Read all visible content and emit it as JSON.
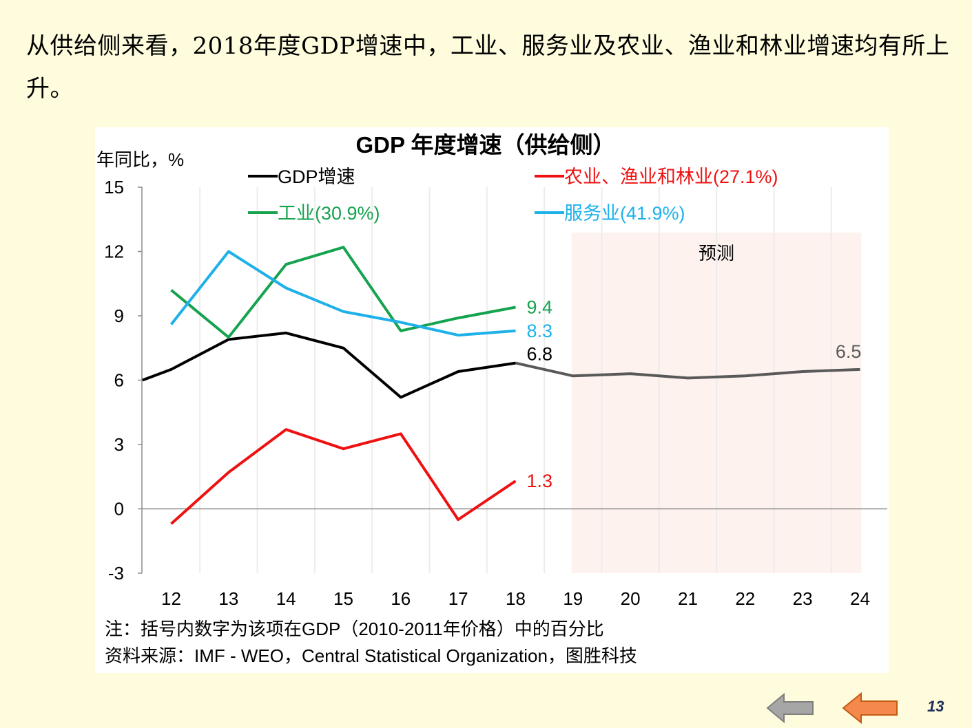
{
  "page": {
    "heading": "从供给侧来看，2018年度GDP增速中，工业、服务业及农业、渔业和林业增速均有所上升。",
    "page_number": "13"
  },
  "nav": {
    "back_icon": "arrow-left-gray",
    "prev_icon": "arrow-left-orange"
  },
  "colors": {
    "background": "#FEFCDC",
    "gdp": "#000000",
    "gdp_forecast": "#595959",
    "agri": "#EE1111",
    "industry": "#16A34F",
    "services": "#1EB1E9",
    "forecast_shade": "#FDF2EE",
    "nav_gray": "#A6A6A6",
    "nav_orange": "#F4894E"
  },
  "chart_data": {
    "type": "line",
    "title": "GDP 年度增速（供给侧）",
    "ylabel": "年同比，%",
    "xlabel": "",
    "categories": [
      "12",
      "13",
      "14",
      "15",
      "16",
      "17",
      "18",
      "19",
      "20",
      "21",
      "22",
      "23",
      "24"
    ],
    "yticks": [
      "15",
      "12",
      "9",
      "6",
      "3",
      "0",
      "-3"
    ],
    "ylim": [
      -3,
      15
    ],
    "grid": "vertical",
    "legend_position": "top",
    "forecast_label": "预测",
    "forecast_range": [
      "19",
      "24"
    ],
    "series": [
      {
        "name": "GDP增速",
        "color": "#000000",
        "x": [
          11.5,
          12,
          13,
          14,
          15,
          16,
          17,
          18
        ],
        "values": [
          6.0,
          6.5,
          7.9,
          8.2,
          7.5,
          5.2,
          6.4,
          6.8
        ],
        "end_label": "6.8"
      },
      {
        "name": "",
        "color": "#595959",
        "x": [
          18,
          19,
          20,
          21,
          22,
          23,
          24
        ],
        "values": [
          6.8,
          6.2,
          6.3,
          6.1,
          6.2,
          6.4,
          6.5
        ],
        "end_label": "6.5"
      },
      {
        "name": "农业、渔业和林业(27.1%)",
        "color": "#EE1111",
        "x": [
          12,
          13,
          14,
          15,
          16,
          17,
          18
        ],
        "values": [
          -0.7,
          1.7,
          3.7,
          2.8,
          3.5,
          -0.5,
          1.3
        ],
        "end_label": "1.3"
      },
      {
        "name": "工业(30.9%)",
        "color": "#16A34F",
        "x": [
          12,
          13,
          14,
          15,
          16,
          17,
          18
        ],
        "values": [
          10.2,
          8.0,
          11.4,
          12.2,
          8.3,
          8.9,
          9.4
        ],
        "end_label": "9.4"
      },
      {
        "name": "服务业(41.9%)",
        "color": "#1EB1E9",
        "x": [
          12,
          13,
          14,
          15,
          16,
          17,
          18
        ],
        "values": [
          8.6,
          12.0,
          10.3,
          9.2,
          8.7,
          8.1,
          8.3
        ],
        "end_label": "8.3"
      }
    ],
    "legend": [
      {
        "label": "GDP增速",
        "color": "#000000"
      },
      {
        "label": "农业、渔业和林业(27.1%)",
        "color": "#EE1111"
      },
      {
        "label": "工业(30.9%)",
        "color": "#16A34F"
      },
      {
        "label": "服务业(41.9%)",
        "color": "#1EB1E9"
      }
    ],
    "notes": [
      "注：括号内数字为该项在GDP（2010-2011年价格）中的百分比",
      "资料来源：IMF - WEO，Central Statistical Organization，图胜科技"
    ]
  }
}
